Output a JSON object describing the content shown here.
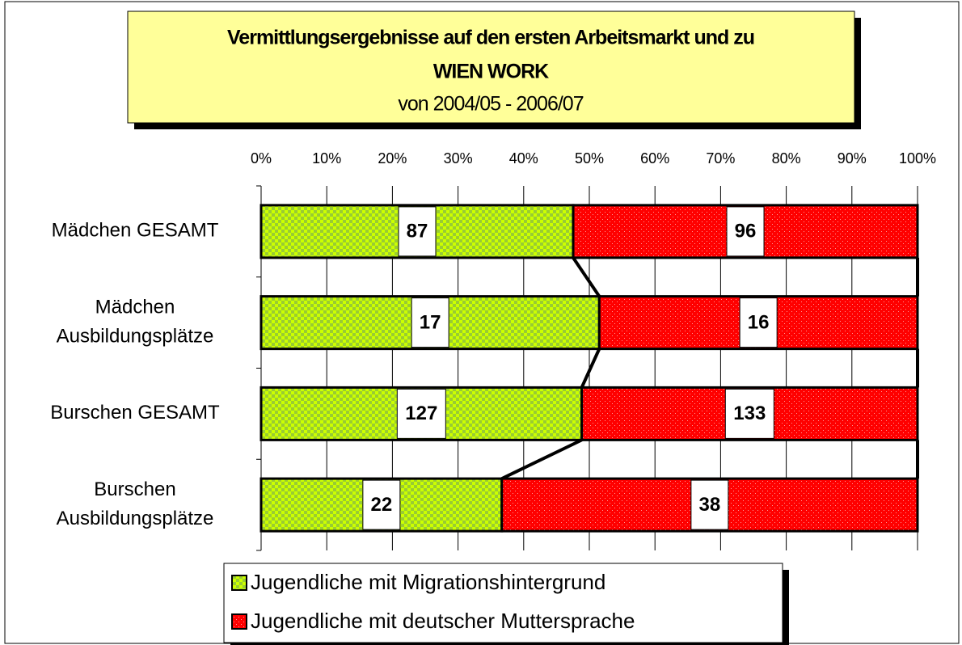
{
  "chart_data": {
    "type": "bar",
    "orientation": "horizontal",
    "stacked": "percent",
    "title": "Vermittlungsergebnisse auf den ersten Arbeitsmarkt und zu",
    "title_line2": "WIEN WORK",
    "subtitle": "von 2004/05 - 2006/07",
    "categories": [
      "Mädchen GESAMT",
      [
        "Mädchen",
        "Ausbildungsplätze"
      ],
      "Burschen GESAMT",
      [
        "Burschen",
        "Ausbildungsplätze"
      ]
    ],
    "series": [
      {
        "name": "Jugendliche mit Migrationshintergrund",
        "color": "#ccff00",
        "color2": "#99cc33",
        "pattern": "checker",
        "values": [
          87,
          17,
          127,
          22
        ]
      },
      {
        "name": "Jugendliche mit deutscher Muttersprache",
        "color": "#ff0000",
        "color2": "#ff9999",
        "pattern": "dots",
        "values": [
          96,
          16,
          133,
          38
        ]
      }
    ],
    "xlim": [
      0,
      100
    ],
    "xticks": [
      {
        "value": 0,
        "label": "0%"
      },
      {
        "value": 10,
        "label": "10%"
      },
      {
        "value": 20,
        "label": "20%"
      },
      {
        "value": 30,
        "label": "30%"
      },
      {
        "value": 40,
        "label": "40%"
      },
      {
        "value": 50,
        "label": "50%"
      },
      {
        "value": 60,
        "label": "60%"
      },
      {
        "value": 70,
        "label": "70%"
      },
      {
        "value": 80,
        "label": "80%"
      },
      {
        "value": 90,
        "label": "90%"
      },
      {
        "value": 100,
        "label": "100%"
      }
    ],
    "grid": true,
    "series_lines": true,
    "legend": "bottom"
  }
}
